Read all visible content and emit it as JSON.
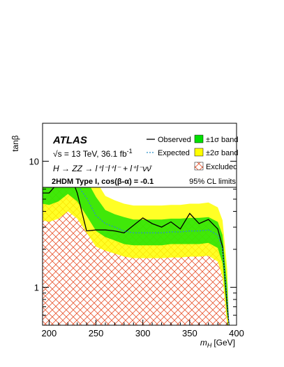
{
  "chart_data": {
    "type": "line",
    "experiment": "ATLAS",
    "energy_label": "√s = 13 TeV, 36.1 fb",
    "energy_superscript": "-1",
    "process_label": "H → ZZ → l⁺l⁻l⁺l⁻ + l⁺l⁻νν̄",
    "model_label": "2HDM Type I, cos(β-α) = -0.1",
    "cl_label": "95% CL limits",
    "ylabel": "tanβ",
    "xlabel": "m",
    "xlabel_sub": "H",
    "xlabel_unit": "[GeV]",
    "xlim": [
      193,
      400
    ],
    "ylim": [
      0.5,
      20
    ],
    "yscale": "log",
    "x_ticks": [
      200,
      250,
      300,
      350,
      400
    ],
    "y_ticks": [
      {
        "value": 1,
        "label": "1"
      },
      {
        "value": 10,
        "label": "10"
      }
    ],
    "legend": [
      {
        "key": "observed",
        "label": "Observed"
      },
      {
        "key": "expected",
        "label": "Expected"
      },
      {
        "key": "band1",
        "label": "±1σ band"
      },
      {
        "key": "band2",
        "label": "±2σ band"
      },
      {
        "key": "excluded",
        "label": "Excluded"
      }
    ],
    "colors": {
      "observed": "#000000",
      "expected": "#2a8fc8",
      "band1": "#00e000",
      "band2": "#ffff00",
      "excluded_hatch": "#e8552f"
    },
    "series": [
      {
        "name": "Observed",
        "x": [
          193,
          200,
          210,
          220,
          230,
          240,
          250,
          260,
          270,
          280,
          290,
          300,
          310,
          320,
          330,
          340,
          350,
          360,
          370,
          380,
          385,
          390,
          392
        ],
        "y": [
          5.6,
          5.6,
          6.8,
          8.8,
          5.6,
          2.8,
          2.85,
          2.85,
          2.8,
          2.7,
          3.1,
          3.55,
          3.2,
          3.0,
          3.3,
          2.9,
          3.85,
          3.2,
          3.45,
          2.9,
          2.1,
          0.7,
          0.5
        ]
      },
      {
        "name": "Expected",
        "x": [
          193,
          200,
          210,
          220,
          230,
          240,
          250,
          260,
          270,
          280,
          290,
          300,
          310,
          320,
          330,
          340,
          350,
          360,
          370,
          380,
          385,
          390,
          392
        ],
        "y": [
          6.3,
          6.2,
          6.5,
          7.4,
          6.5,
          5.1,
          3.7,
          3.2,
          3.0,
          2.8,
          2.7,
          2.7,
          2.7,
          2.7,
          2.75,
          2.75,
          2.8,
          2.8,
          2.85,
          2.6,
          2.0,
          0.8,
          0.5
        ]
      }
    ],
    "band_x": [
      193,
      200,
      210,
      220,
      230,
      240,
      250,
      260,
      270,
      280,
      290,
      300,
      310,
      320,
      330,
      340,
      350,
      360,
      370,
      380,
      385,
      390,
      392
    ],
    "band1_upper": [
      8.3,
      8.2,
      8.6,
      9.6,
      8.6,
      7.1,
      5.2,
      4.1,
      3.8,
      3.6,
      3.45,
      3.45,
      3.45,
      3.45,
      3.5,
      3.5,
      3.55,
      3.55,
      3.6,
      3.3,
      2.6,
      1.05,
      0.5
    ],
    "band1_lower": [
      4.6,
      4.5,
      4.8,
      5.5,
      4.8,
      3.7,
      2.8,
      2.5,
      2.35,
      2.2,
      2.15,
      2.15,
      2.15,
      2.15,
      2.2,
      2.2,
      2.2,
      2.2,
      2.25,
      2.05,
      1.55,
      0.6,
      0.5
    ],
    "band2_upper": [
      11.2,
      11.0,
      11.6,
      12.9,
      11.6,
      9.4,
      7.0,
      5.3,
      4.9,
      4.6,
      4.45,
      4.45,
      4.45,
      4.45,
      4.5,
      4.5,
      4.6,
      4.6,
      4.7,
      4.3,
      3.4,
      1.4,
      0.5
    ],
    "band2_lower": [
      3.4,
      3.3,
      3.5,
      4.0,
      3.5,
      2.7,
      2.1,
      1.95,
      1.85,
      1.75,
      1.7,
      1.7,
      1.7,
      1.7,
      1.72,
      1.72,
      1.75,
      1.75,
      1.78,
      1.6,
      1.2,
      0.5,
      0.5
    ]
  }
}
